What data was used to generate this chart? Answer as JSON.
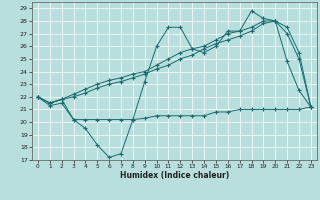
{
  "xlabel": "Humidex (Indice chaleur)",
  "xlim": [
    -0.5,
    23.5
  ],
  "ylim": [
    17,
    29.5
  ],
  "yticks": [
    17,
    18,
    19,
    20,
    21,
    22,
    23,
    24,
    25,
    26,
    27,
    28,
    29
  ],
  "xticks": [
    0,
    1,
    2,
    3,
    4,
    5,
    6,
    7,
    8,
    9,
    10,
    11,
    12,
    13,
    14,
    15,
    16,
    17,
    18,
    19,
    20,
    21,
    22,
    23
  ],
  "bg_color": "#b8dede",
  "line_color": "#1a6b6b",
  "grid_color": "#ffffff",
  "series": [
    {
      "x": [
        0,
        1,
        2,
        3,
        4,
        5,
        6,
        7,
        8,
        9,
        10,
        11,
        12,
        13,
        14,
        15,
        16,
        17,
        18,
        19,
        20,
        21,
        22,
        23
      ],
      "y": [
        22.0,
        21.3,
        21.5,
        20.2,
        19.5,
        18.2,
        17.2,
        17.5,
        20.2,
        23.2,
        26.0,
        27.5,
        27.5,
        25.8,
        25.5,
        26.0,
        27.2,
        27.2,
        28.8,
        28.2,
        28.0,
        24.8,
        22.5,
        21.2
      ]
    },
    {
      "x": [
        0,
        1,
        2,
        3,
        4,
        5,
        6,
        7,
        8,
        9,
        10,
        11,
        12,
        13,
        14,
        15,
        16,
        17,
        18,
        19,
        20,
        21,
        22,
        23
      ],
      "y": [
        22.0,
        21.5,
        21.8,
        22.2,
        22.6,
        23.0,
        23.3,
        23.5,
        23.8,
        24.0,
        24.5,
        25.0,
        25.5,
        25.8,
        26.0,
        26.5,
        27.0,
        27.2,
        27.5,
        28.0,
        28.0,
        27.5,
        25.5,
        21.2
      ]
    },
    {
      "x": [
        0,
        1,
        2,
        3,
        4,
        5,
        6,
        7,
        8,
        9,
        10,
        11,
        12,
        13,
        14,
        15,
        16,
        17,
        18,
        19,
        20,
        21,
        22,
        23
      ],
      "y": [
        22.0,
        21.5,
        21.8,
        22.0,
        22.3,
        22.7,
        23.0,
        23.2,
        23.5,
        23.8,
        24.2,
        24.5,
        25.0,
        25.3,
        25.8,
        26.2,
        26.5,
        26.8,
        27.2,
        27.8,
        28.0,
        27.0,
        25.0,
        21.2
      ]
    },
    {
      "x": [
        0,
        1,
        2,
        3,
        4,
        5,
        6,
        7,
        8,
        9,
        10,
        11,
        12,
        13,
        14,
        15,
        16,
        17,
        18,
        19,
        20,
        21,
        22,
        23
      ],
      "y": [
        22.0,
        21.5,
        21.8,
        20.2,
        20.2,
        20.2,
        20.2,
        20.2,
        20.2,
        20.3,
        20.5,
        20.5,
        20.5,
        20.5,
        20.5,
        20.8,
        20.8,
        21.0,
        21.0,
        21.0,
        21.0,
        21.0,
        21.0,
        21.2
      ]
    }
  ]
}
